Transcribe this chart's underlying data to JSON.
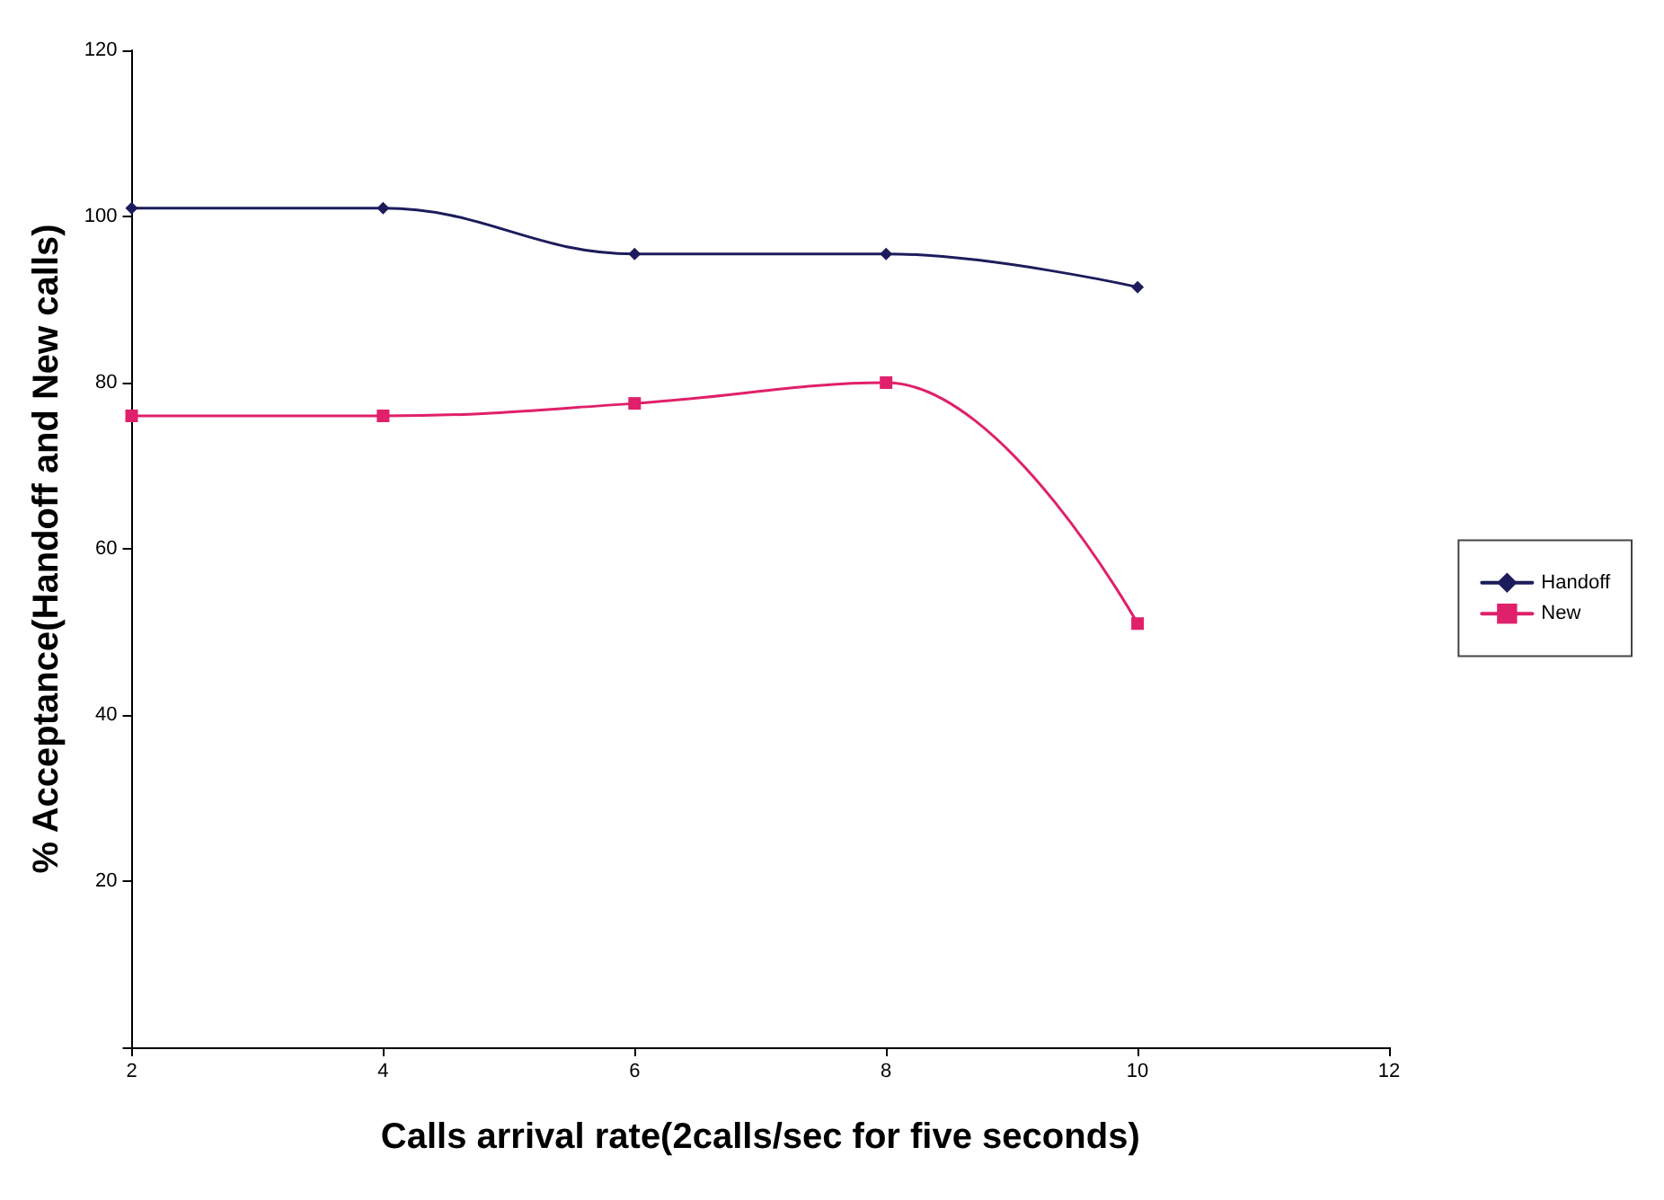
{
  "chart_data": {
    "type": "line",
    "xlabel": "Calls arrival rate(2calls/sec for five seconds)",
    "ylabel": "% Acceptance(Handoff and New calls)",
    "x": [
      2,
      4,
      6,
      8,
      10
    ],
    "series": [
      {
        "name": "Handoff",
        "color": "#1c1c5c",
        "marker": "diamond",
        "values": [
          101,
          101,
          95.5,
          95.5,
          91.5
        ]
      },
      {
        "name": "New",
        "color": "#e0206a",
        "marker": "square",
        "values": [
          76,
          76,
          77.5,
          80,
          51
        ]
      }
    ],
    "xlim": [
      2,
      12
    ],
    "xticks": [
      2,
      4,
      6,
      8,
      10,
      12
    ],
    "ylim": [
      0,
      120
    ],
    "yticks": [
      {
        "value": 0,
        "label": null
      },
      20,
      40,
      60,
      80,
      100,
      120
    ],
    "grid": false,
    "legend": "right",
    "line_style": "solid"
  }
}
